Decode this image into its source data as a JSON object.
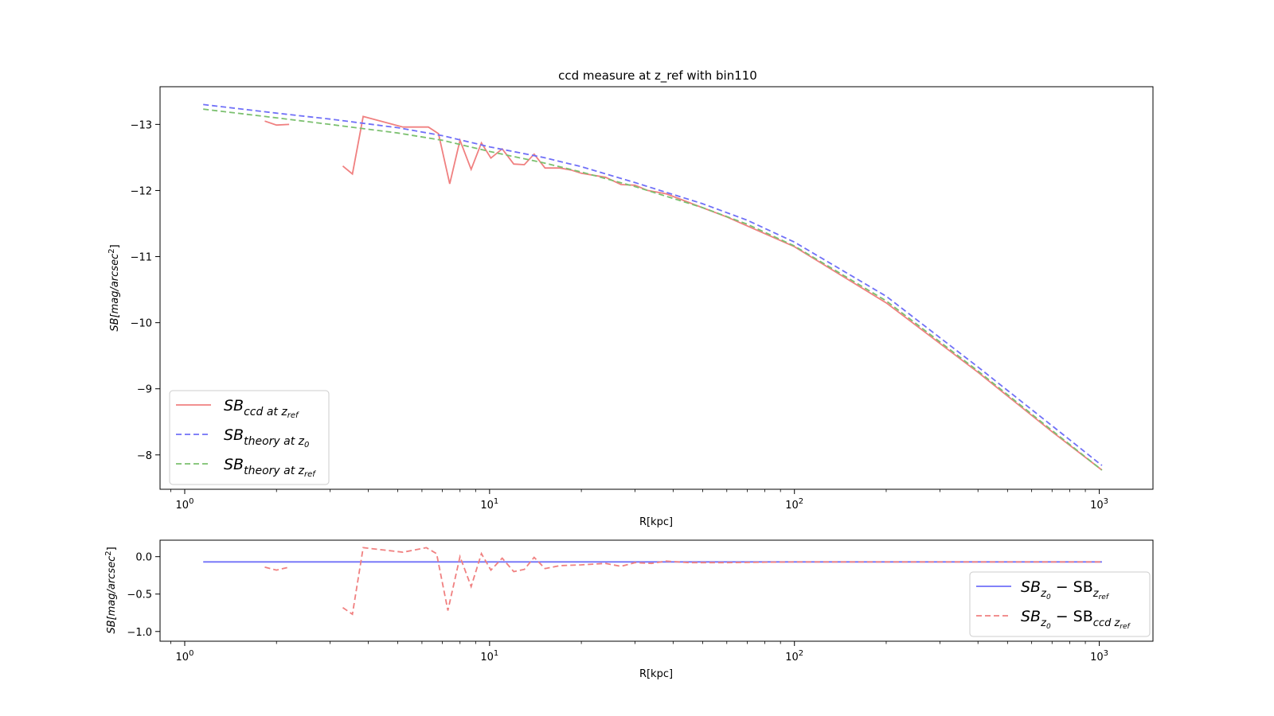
{
  "chart_data": [
    {
      "type": "line",
      "title": "ccd measure at z_ref with bin110",
      "xlabel": "R[kpc]",
      "ylabel": "SB[mag/arcsec^2]",
      "ylabel_parts": {
        "sym": "SB",
        "unit": "[mag/arcsec",
        "sup": "2",
        "close": "]"
      },
      "xscale": "log",
      "xlim": [
        0.83,
        1500
      ],
      "ylim": [
        -7.48,
        -13.57
      ],
      "y_inverted": true,
      "x_ticks": [
        {
          "value": 1,
          "base": "10",
          "exp": "0"
        },
        {
          "value": 10,
          "base": "10",
          "exp": "1"
        },
        {
          "value": 100,
          "base": "10",
          "exp": "2"
        },
        {
          "value": 1000,
          "base": "10",
          "exp": "3"
        }
      ],
      "y_ticks": [
        {
          "value": -13,
          "label": "−13"
        },
        {
          "value": -12,
          "label": "−12"
        },
        {
          "value": -11,
          "label": "−11"
        },
        {
          "value": -10,
          "label": "−10"
        },
        {
          "value": -9,
          "label": "−9"
        },
        {
          "value": -8,
          "label": "−8"
        }
      ],
      "grid": false,
      "legend_position": "lower-left",
      "series": [
        {
          "key": "ccd",
          "name_main": "SB",
          "name_sub": "ccd at z",
          "name_subsub": "ref",
          "color": "#f08080",
          "style": "solid",
          "segments": [
            [
              [
                1.83,
                -13.05
              ],
              [
                2.0,
                -12.99
              ],
              [
                2.2,
                -13.0
              ]
            ],
            [
              [
                3.3,
                -12.37
              ],
              [
                3.55,
                -12.25
              ],
              [
                3.85,
                -13.12
              ],
              [
                5.2,
                -12.96
              ],
              [
                6.3,
                -12.96
              ],
              [
                6.8,
                -12.86
              ],
              [
                7.4,
                -12.1
              ],
              [
                8.0,
                -12.76
              ],
              [
                8.7,
                -12.32
              ],
              [
                9.4,
                -12.72
              ],
              [
                10.1,
                -12.49
              ],
              [
                11.0,
                -12.63
              ],
              [
                12.0,
                -12.4
              ],
              [
                13.0,
                -12.39
              ],
              [
                14.0,
                -12.55
              ],
              [
                15.2,
                -12.34
              ],
              [
                17.0,
                -12.34
              ],
              [
                18.5,
                -12.31
              ],
              [
                20,
                -12.26
              ],
              [
                24,
                -12.2
              ],
              [
                27,
                -12.09
              ],
              [
                30,
                -12.08
              ],
              [
                33,
                -12.0
              ],
              [
                38,
                -11.95
              ],
              [
                45,
                -11.82
              ],
              [
                60,
                -11.6
              ],
              [
                100,
                -11.15
              ],
              [
                200,
                -10.3
              ],
              [
                400,
                -9.25
              ],
              [
                700,
                -8.35
              ],
              [
                1020,
                -7.77
              ]
            ]
          ]
        },
        {
          "key": "theory_z0",
          "name_main": "SB",
          "name_sub": "theory at z",
          "name_subsub": "0",
          "color": "#7070f8",
          "style": "dashed",
          "segments": [
            [
              [
                1.15,
                -13.3
              ],
              [
                2,
                -13.17
              ],
              [
                3,
                -13.08
              ],
              [
                5,
                -12.95
              ],
              [
                7,
                -12.83
              ],
              [
                10,
                -12.66
              ],
              [
                15,
                -12.5
              ],
              [
                20,
                -12.36
              ],
              [
                30,
                -12.12
              ],
              [
                50,
                -11.8
              ],
              [
                70,
                -11.55
              ],
              [
                100,
                -11.22
              ],
              [
                200,
                -10.4
              ],
              [
                400,
                -9.33
              ],
              [
                700,
                -8.44
              ],
              [
                1020,
                -7.84
              ]
            ]
          ]
        },
        {
          "key": "theory_zref",
          "name_main": "SB",
          "name_sub": "theory at z",
          "name_subsub": "ref",
          "color": "#7bc06f",
          "style": "dashed",
          "segments": [
            [
              [
                1.15,
                -13.23
              ],
              [
                2,
                -13.1
              ],
              [
                3,
                -13.0
              ],
              [
                5,
                -12.87
              ],
              [
                7,
                -12.76
              ],
              [
                10,
                -12.59
              ],
              [
                15,
                -12.42
              ],
              [
                20,
                -12.28
              ],
              [
                30,
                -12.06
              ],
              [
                50,
                -11.74
              ],
              [
                70,
                -11.49
              ],
              [
                100,
                -11.16
              ],
              [
                200,
                -10.33
              ],
              [
                400,
                -9.27
              ],
              [
                700,
                -8.37
              ],
              [
                1020,
                -7.77
              ]
            ]
          ]
        }
      ]
    },
    {
      "type": "line",
      "title": "",
      "xlabel": "R[kpc]",
      "ylabel": "SB[mag/arcsec^2]",
      "ylabel_parts": {
        "sym": "SB",
        "unit": "[mag/arcsec",
        "sup": "2",
        "close": "]"
      },
      "xscale": "log",
      "xlim": [
        0.83,
        1500
      ],
      "ylim": [
        -1.13,
        0.22
      ],
      "y_inverted": false,
      "x_ticks": [
        {
          "value": 1,
          "base": "10",
          "exp": "0"
        },
        {
          "value": 10,
          "base": "10",
          "exp": "1"
        },
        {
          "value": 100,
          "base": "10",
          "exp": "2"
        },
        {
          "value": 1000,
          "base": "10",
          "exp": "3"
        }
      ],
      "y_ticks": [
        {
          "value": 0.0,
          "label": "0.0"
        },
        {
          "value": -0.5,
          "label": "−0.5"
        },
        {
          "value": -1.0,
          "label": "−1.0"
        }
      ],
      "grid": false,
      "legend_position": "lower-right",
      "series": [
        {
          "key": "diff_theory",
          "name_main": "SB",
          "name_sub": "z",
          "name_subsub": "0",
          "name_mid": " − SB",
          "name_sub2": "z",
          "name_subsub2": "ref",
          "color": "#7070f8",
          "style": "solid",
          "segments": [
            [
              [
                1.15,
                -0.07
              ],
              [
                1020,
                -0.07
              ]
            ]
          ]
        },
        {
          "key": "diff_ccd",
          "name_main": "SB",
          "name_sub": "z",
          "name_subsub": "0",
          "name_mid": " − SB",
          "name_sub2": "ccd z",
          "name_subsub2": "ref",
          "color": "#f08080",
          "style": "dashed",
          "segments": [
            [
              [
                1.83,
                -0.14
              ],
              [
                2.0,
                -0.18
              ],
              [
                2.2,
                -0.14
              ]
            ],
            [
              [
                3.3,
                -0.68
              ],
              [
                3.55,
                -0.77
              ],
              [
                3.85,
                0.12
              ],
              [
                5.2,
                0.06
              ],
              [
                6.2,
                0.12
              ],
              [
                6.7,
                0.04
              ],
              [
                7.3,
                -0.72
              ],
              [
                8.0,
                0.0
              ],
              [
                8.7,
                -0.4
              ],
              [
                9.4,
                0.04
              ],
              [
                10.1,
                -0.18
              ],
              [
                11.0,
                -0.02
              ],
              [
                12.0,
                -0.2
              ],
              [
                13.0,
                -0.17
              ],
              [
                14.0,
                -0.01
              ],
              [
                15.2,
                -0.16
              ],
              [
                17.0,
                -0.12
              ],
              [
                20,
                -0.11
              ],
              [
                24,
                -0.09
              ],
              [
                27,
                -0.13
              ],
              [
                30,
                -0.08
              ],
              [
                34,
                -0.09
              ],
              [
                38,
                -0.06
              ],
              [
                45,
                -0.08
              ],
              [
                60,
                -0.08
              ],
              [
                100,
                -0.07
              ],
              [
                1020,
                -0.07
              ]
            ]
          ]
        }
      ]
    }
  ]
}
